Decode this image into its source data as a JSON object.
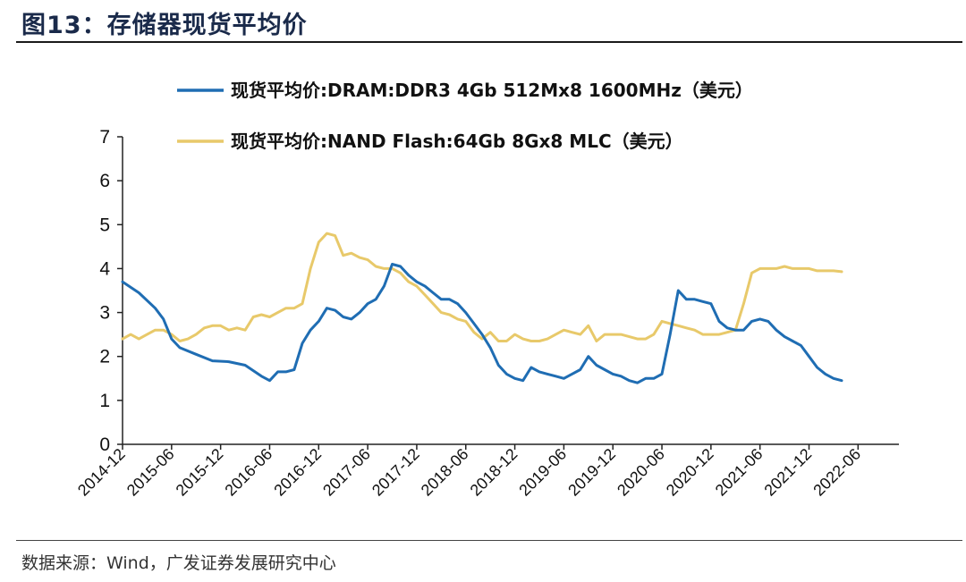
{
  "header": {
    "title": "图13：存储器现货平均价"
  },
  "footer": {
    "source": "数据来源：Wind，广发证券发展研究中心"
  },
  "colors": {
    "dram": "#1f6db3",
    "nand": "#e8c96a",
    "axis": "#222222"
  },
  "chart_data": {
    "type": "line",
    "title": "存储器现货平均价",
    "xlabel": "",
    "ylabel": "",
    "ylim": [
      0,
      7
    ],
    "yticks": [
      0,
      1,
      2,
      3,
      4,
      5,
      6,
      7
    ],
    "xlim": [
      0,
      95
    ],
    "xtick_labels": [
      "2014-12",
      "2015-06",
      "2015-12",
      "2016-06",
      "2016-12",
      "2017-06",
      "2017-12",
      "2018-06",
      "2018-12",
      "2019-06",
      "2019-12",
      "2020-06",
      "2020-12",
      "2021-06",
      "2021-12",
      "2022-06"
    ],
    "xtick_positions": [
      0,
      6,
      12,
      18,
      24,
      30,
      36,
      42,
      48,
      54,
      60,
      66,
      72,
      78,
      84,
      90
    ],
    "legend_position": "top",
    "series": [
      {
        "name": "现货平均价:DRAM:DDR3 4Gb 512Mx8 1600MHz（美元）",
        "color_key": "dram",
        "points": [
          [
            0,
            3.7
          ],
          [
            2,
            3.45
          ],
          [
            4,
            3.1
          ],
          [
            5,
            2.85
          ],
          [
            6,
            2.4
          ],
          [
            7,
            2.2
          ],
          [
            9,
            2.05
          ],
          [
            11,
            1.9
          ],
          [
            13,
            1.88
          ],
          [
            15,
            1.8
          ],
          [
            17,
            1.55
          ],
          [
            18,
            1.45
          ],
          [
            19,
            1.65
          ],
          [
            20,
            1.65
          ],
          [
            21,
            1.7
          ],
          [
            22,
            2.3
          ],
          [
            23,
            2.6
          ],
          [
            24,
            2.8
          ],
          [
            25,
            3.1
          ],
          [
            26,
            3.05
          ],
          [
            27,
            2.9
          ],
          [
            28,
            2.85
          ],
          [
            29,
            3.0
          ],
          [
            30,
            3.2
          ],
          [
            31,
            3.3
          ],
          [
            32,
            3.6
          ],
          [
            33,
            4.1
          ],
          [
            34,
            4.05
          ],
          [
            35,
            3.85
          ],
          [
            36,
            3.7
          ],
          [
            37,
            3.6
          ],
          [
            38,
            3.45
          ],
          [
            39,
            3.3
          ],
          [
            40,
            3.3
          ],
          [
            41,
            3.2
          ],
          [
            42,
            3.0
          ],
          [
            43,
            2.75
          ],
          [
            44,
            2.5
          ],
          [
            45,
            2.2
          ],
          [
            46,
            1.8
          ],
          [
            47,
            1.6
          ],
          [
            48,
            1.5
          ],
          [
            49,
            1.45
          ],
          [
            50,
            1.75
          ],
          [
            51,
            1.65
          ],
          [
            52,
            1.6
          ],
          [
            53,
            1.55
          ],
          [
            54,
            1.5
          ],
          [
            55,
            1.6
          ],
          [
            56,
            1.7
          ],
          [
            57,
            2.0
          ],
          [
            58,
            1.8
          ],
          [
            59,
            1.7
          ],
          [
            60,
            1.6
          ],
          [
            61,
            1.55
          ],
          [
            62,
            1.45
          ],
          [
            63,
            1.4
          ],
          [
            64,
            1.5
          ],
          [
            65,
            1.5
          ],
          [
            66,
            1.6
          ],
          [
            67,
            2.5
          ],
          [
            68,
            3.5
          ],
          [
            69,
            3.3
          ],
          [
            70,
            3.3
          ],
          [
            71,
            3.25
          ],
          [
            72,
            3.2
          ],
          [
            73,
            2.8
          ],
          [
            74,
            2.65
          ],
          [
            75,
            2.6
          ],
          [
            76,
            2.6
          ],
          [
            77,
            2.8
          ],
          [
            78,
            2.85
          ],
          [
            79,
            2.8
          ],
          [
            80,
            2.6
          ],
          [
            81,
            2.45
          ],
          [
            82,
            2.35
          ],
          [
            83,
            2.25
          ],
          [
            84,
            2.0
          ],
          [
            85,
            1.75
          ],
          [
            86,
            1.6
          ],
          [
            87,
            1.5
          ],
          [
            88,
            1.45
          ]
        ]
      },
      {
        "name": "现货平均价:NAND Flash:64Gb 8Gx8 MLC（美元）",
        "color_key": "nand",
        "points": [
          [
            0,
            2.4
          ],
          [
            1,
            2.5
          ],
          [
            2,
            2.4
          ],
          [
            3,
            2.5
          ],
          [
            4,
            2.6
          ],
          [
            5,
            2.6
          ],
          [
            6,
            2.5
          ],
          [
            7,
            2.35
          ],
          [
            8,
            2.4
          ],
          [
            9,
            2.5
          ],
          [
            10,
            2.65
          ],
          [
            11,
            2.7
          ],
          [
            12,
            2.7
          ],
          [
            13,
            2.6
          ],
          [
            14,
            2.65
          ],
          [
            15,
            2.6
          ],
          [
            16,
            2.9
          ],
          [
            17,
            2.95
          ],
          [
            18,
            2.9
          ],
          [
            19,
            3.0
          ],
          [
            20,
            3.1
          ],
          [
            21,
            3.1
          ],
          [
            22,
            3.2
          ],
          [
            23,
            4.0
          ],
          [
            24,
            4.6
          ],
          [
            25,
            4.8
          ],
          [
            26,
            4.75
          ],
          [
            27,
            4.3
          ],
          [
            28,
            4.35
          ],
          [
            29,
            4.25
          ],
          [
            30,
            4.2
          ],
          [
            31,
            4.05
          ],
          [
            32,
            4.0
          ],
          [
            33,
            4.0
          ],
          [
            34,
            3.9
          ],
          [
            35,
            3.7
          ],
          [
            36,
            3.6
          ],
          [
            37,
            3.4
          ],
          [
            38,
            3.2
          ],
          [
            39,
            3.0
          ],
          [
            40,
            2.95
          ],
          [
            41,
            2.85
          ],
          [
            42,
            2.8
          ],
          [
            43,
            2.55
          ],
          [
            44,
            2.4
          ],
          [
            45,
            2.55
          ],
          [
            46,
            2.35
          ],
          [
            47,
            2.35
          ],
          [
            48,
            2.5
          ],
          [
            49,
            2.4
          ],
          [
            50,
            2.35
          ],
          [
            51,
            2.35
          ],
          [
            52,
            2.4
          ],
          [
            53,
            2.5
          ],
          [
            54,
            2.6
          ],
          [
            55,
            2.55
          ],
          [
            56,
            2.5
          ],
          [
            57,
            2.7
          ],
          [
            58,
            2.35
          ],
          [
            59,
            2.5
          ],
          [
            60,
            2.5
          ],
          [
            61,
            2.5
          ],
          [
            62,
            2.45
          ],
          [
            63,
            2.4
          ],
          [
            64,
            2.4
          ],
          [
            65,
            2.5
          ],
          [
            66,
            2.8
          ],
          [
            67,
            2.75
          ],
          [
            68,
            2.7
          ],
          [
            69,
            2.65
          ],
          [
            70,
            2.6
          ],
          [
            71,
            2.5
          ],
          [
            72,
            2.5
          ],
          [
            73,
            2.5
          ],
          [
            74,
            2.55
          ],
          [
            75,
            2.6
          ],
          [
            76,
            3.2
          ],
          [
            77,
            3.9
          ],
          [
            78,
            4.0
          ],
          [
            79,
            4.0
          ],
          [
            80,
            4.0
          ],
          [
            81,
            4.05
          ],
          [
            82,
            4.0
          ],
          [
            83,
            4.0
          ],
          [
            84,
            4.0
          ],
          [
            85,
            3.95
          ],
          [
            86,
            3.95
          ],
          [
            87,
            3.95
          ],
          [
            88,
            3.93
          ]
        ]
      }
    ]
  }
}
